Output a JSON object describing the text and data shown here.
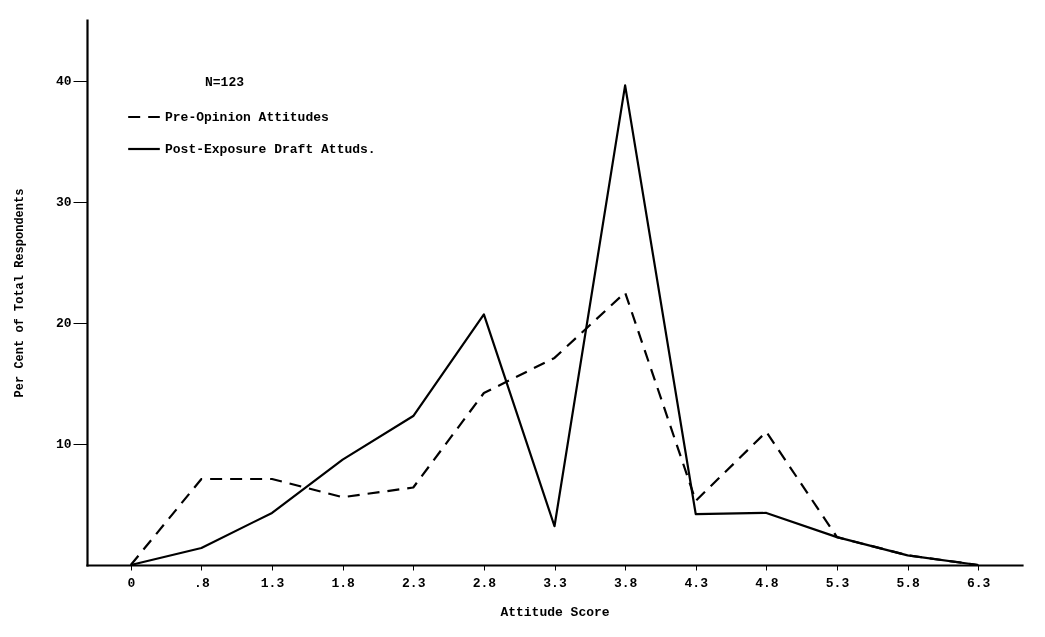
{
  "chart_data": {
    "type": "line",
    "xlabel": "Attitude Score",
    "ylabel": "Per Cent of Total Respondents",
    "annotations": [
      "N=123"
    ],
    "categories": [
      "0",
      ".8",
      "1.3",
      "1.8",
      "2.3",
      "2.8",
      "3.3",
      "3.8",
      "4.3",
      "4.8",
      "5.3",
      "5.8",
      "6.3"
    ],
    "series": [
      {
        "name": "Pre-Opinion Attitudes",
        "color": "#000000",
        "line_style": "dashed",
        "values": [
          0,
          7.1,
          7.1,
          5.6,
          6.4,
          14.2,
          17.1,
          22.5,
          5.3,
          11.0,
          2.3,
          0.8,
          0
        ]
      },
      {
        "name": "Post-Exposure Draft Attuds.",
        "color": "#000000",
        "line_style": "solid",
        "values": [
          0,
          1.4,
          4.3,
          8.7,
          12.3,
          20.7,
          3.2,
          39.6,
          4.2,
          4.3,
          2.3,
          0.8,
          0
        ]
      }
    ],
    "ylim": [
      0,
      45
    ],
    "yticks": [
      10,
      20,
      30,
      40
    ],
    "grid": false,
    "legend": "top left",
    "marker": "none"
  }
}
